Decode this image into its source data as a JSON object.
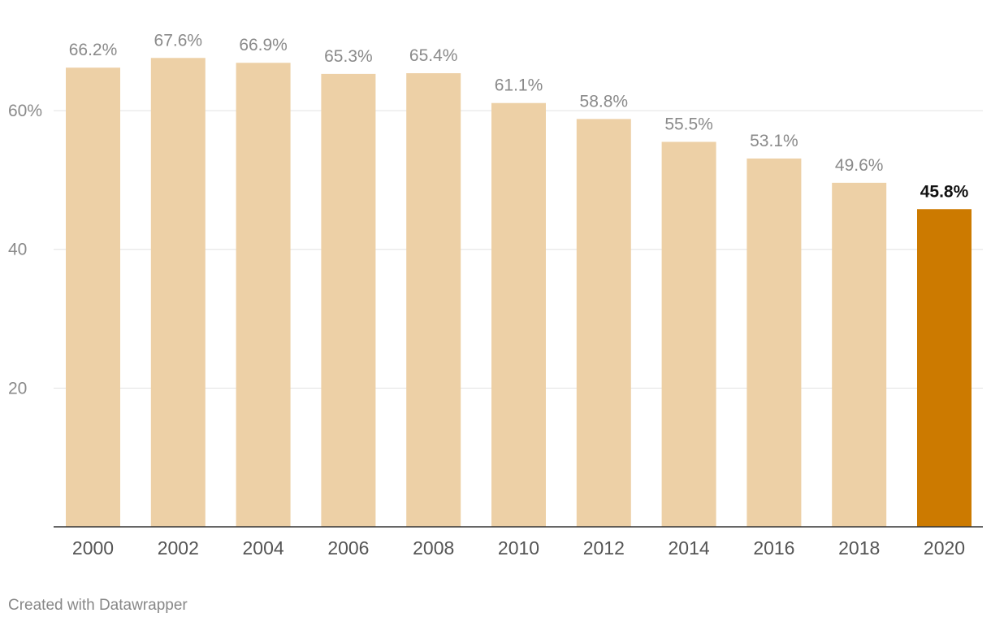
{
  "chart_data": {
    "type": "bar",
    "categories": [
      "2000",
      "2002",
      "2004",
      "2006",
      "2008",
      "2010",
      "2012",
      "2014",
      "2016",
      "2018",
      "2020"
    ],
    "values": [
      66.2,
      67.6,
      66.9,
      65.3,
      65.4,
      61.1,
      58.8,
      55.5,
      53.1,
      49.6,
      45.8
    ],
    "value_labels": [
      "66.2%",
      "67.6%",
      "66.9%",
      "65.3%",
      "65.4%",
      "61.1%",
      "58.8%",
      "55.5%",
      "53.1%",
      "49.6%",
      "45.8%"
    ],
    "highlight_index": 10,
    "ylim": [
      0,
      71.5
    ],
    "yticks": [
      20,
      40,
      60
    ],
    "ytick_labels": [
      "20",
      "40",
      "60%"
    ],
    "grid": true,
    "colors": {
      "bar": "#edd0a6",
      "highlight": "#cc7a00"
    }
  },
  "credit": "Created with Datawrapper"
}
